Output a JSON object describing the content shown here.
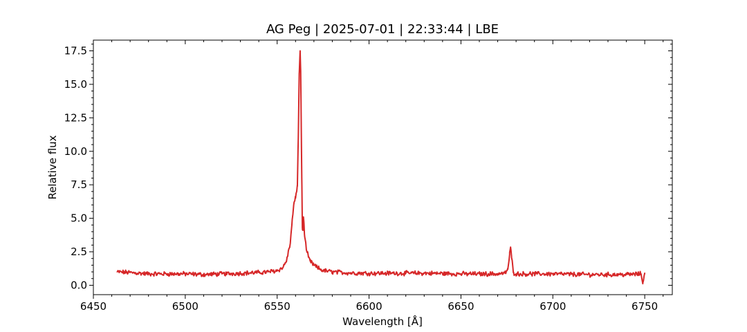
{
  "chart_data": {
    "type": "line",
    "title": "AG Peg | 2025-07-01 | 22:33:44 | LBE",
    "xlabel": "Wavelength [Å]",
    "ylabel": "Relative flux",
    "xlim": [
      6450,
      6765
    ],
    "ylim": [
      -0.7,
      18.3
    ],
    "xticks": [
      6450,
      6500,
      6550,
      6600,
      6650,
      6700,
      6750
    ],
    "xtick_labels": [
      "6450",
      "6500",
      "6550",
      "6600",
      "6650",
      "6700",
      "6750"
    ],
    "yticks": [
      0.0,
      2.5,
      5.0,
      7.5,
      10.0,
      12.5,
      15.0,
      17.5
    ],
    "ytick_labels": [
      "0.0",
      "2.5",
      "5.0",
      "7.5",
      "10.0",
      "12.5",
      "15.0",
      "17.5"
    ],
    "grid": false,
    "series": [
      {
        "color": "#d62728",
        "x": [
          6463,
          6470,
          6480,
          6490,
          6500,
          6510,
          6520,
          6530,
          6540,
          6545,
          6550,
          6553,
          6555,
          6557,
          6558,
          6559,
          6560,
          6561,
          6561.5,
          6562,
          6562.5,
          6562.8,
          6563.1,
          6563.4,
          6563.7,
          6564,
          6564.3,
          6564.6,
          6565,
          6566,
          6567,
          6568,
          6570,
          6572,
          6575,
          6580,
          6590,
          6600,
          6610,
          6620,
          6630,
          6640,
          6650,
          6660,
          6670,
          6674,
          6675.5,
          6676.5,
          6677,
          6677.5,
          6678.5,
          6680,
          6690,
          6700,
          6710,
          6720,
          6730,
          6740,
          6748,
          6749,
          6750
        ],
        "y": [
          1.0,
          0.95,
          0.85,
          0.85,
          0.85,
          0.8,
          0.85,
          0.9,
          0.95,
          1.0,
          1.1,
          1.3,
          1.8,
          3.0,
          4.5,
          6.0,
          6.5,
          7.5,
          11.0,
          15.8,
          17.5,
          16.0,
          12.0,
          8.0,
          4.3,
          4.1,
          5.1,
          4.6,
          3.6,
          2.6,
          2.1,
          1.8,
          1.5,
          1.3,
          1.1,
          1.0,
          0.92,
          0.9,
          0.9,
          0.9,
          0.9,
          0.88,
          0.85,
          0.85,
          0.85,
          0.9,
          1.2,
          2.3,
          2.85,
          2.2,
          0.95,
          0.85,
          0.85,
          0.85,
          0.82,
          0.8,
          0.8,
          0.8,
          0.85,
          0.2,
          0.9
        ]
      }
    ]
  }
}
